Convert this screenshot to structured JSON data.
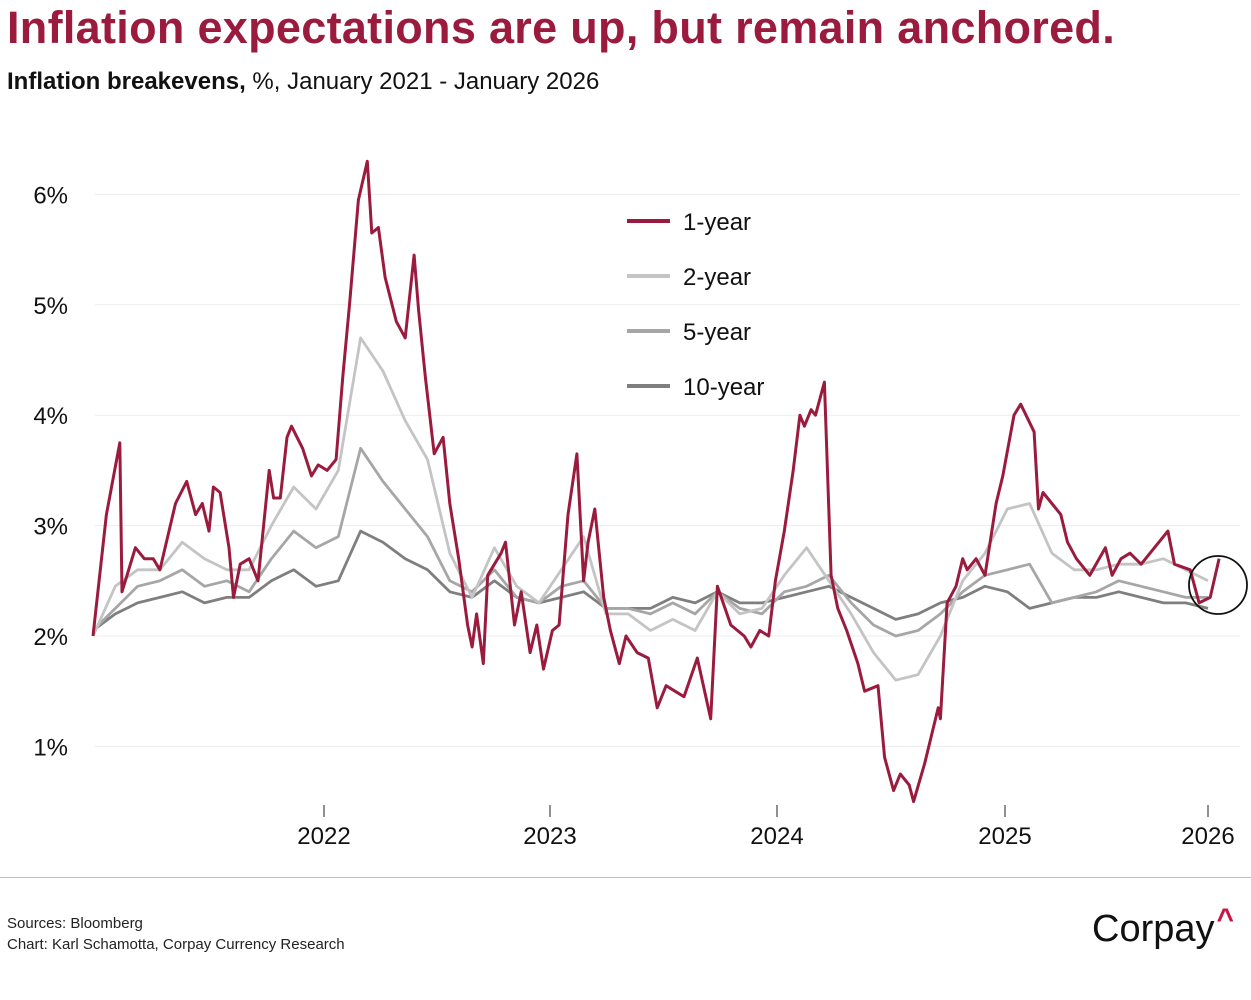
{
  "header": {
    "title": "Inflation expectations are up, but remain anchored.",
    "subtitle_bold": "Inflation breakevens,",
    "subtitle_rest": " %, January 2021 - January 2026"
  },
  "footer": {
    "sources": "Sources: Bloomberg",
    "credit": "Chart: Karl Schamotta, Corpay Currency Research",
    "logo": "Corpay",
    "logo_accent_color": "#c8173f"
  },
  "chart_data": {
    "type": "line",
    "title": "Inflation expectations are up, but remain anchored.",
    "subtitle": "Inflation breakevens, %, January 2021 - January 2026",
    "x_unit": "year (decimal)",
    "xlim": [
      2021.0,
      2026.0
    ],
    "ylim": [
      0.4,
      6.4
    ],
    "y_ticks": [
      1,
      2,
      3,
      4,
      5,
      6
    ],
    "y_tick_labels": [
      "1%",
      "2%",
      "3%",
      "4%",
      "5%",
      "6%"
    ],
    "x_ticks": [
      2022,
      2023,
      2024,
      2025,
      2026
    ],
    "x_tick_labels": [
      "2022",
      "2023",
      "2024",
      "2025",
      "2026"
    ],
    "grid": "horizontal",
    "legend_position": "top-center",
    "annotation": "circle highlighting January 2026 values",
    "grid_x": [
      2021.0,
      2021.1,
      2021.2,
      2021.3,
      2021.4,
      2021.5,
      2021.6,
      2021.7,
      2021.8,
      2021.9,
      2022.0,
      2022.1,
      2022.2,
      2022.3,
      2022.4,
      2022.5,
      2022.6,
      2022.7,
      2022.8,
      2022.9,
      2023.0,
      2023.1,
      2023.2,
      2023.3,
      2023.4,
      2023.5,
      2023.6,
      2023.7,
      2023.8,
      2023.9,
      2024.0,
      2024.1,
      2024.2,
      2024.3,
      2024.4,
      2024.5,
      2024.6,
      2024.7,
      2024.8,
      2024.9,
      2025.0,
      2025.1,
      2025.2,
      2025.3,
      2025.4,
      2025.5,
      2025.6,
      2025.7,
      2025.8,
      2025.9,
      2026.0
    ],
    "series": [
      {
        "name": "1-year",
        "color": "#9b1b3f",
        "x": [
          2021.0,
          2021.06,
          2021.12,
          2021.13,
          2021.19,
          2021.23,
          2021.27,
          2021.3,
          2021.37,
          2021.42,
          2021.46,
          2021.49,
          2021.52,
          2021.54,
          2021.57,
          2021.61,
          2021.63,
          2021.66,
          2021.7,
          2021.74,
          2021.79,
          2021.81,
          2021.84,
          2021.87,
          2021.89,
          2021.94,
          2021.98,
          2022.01,
          2022.05,
          2022.09,
          2022.12,
          2022.15,
          2022.19,
          2022.23,
          2022.25,
          2022.28,
          2022.31,
          2022.36,
          2022.4,
          2022.44,
          2022.46,
          2022.49,
          2022.53,
          2022.57,
          2022.6,
          2022.64,
          2022.68,
          2022.7,
          2022.72,
          2022.75,
          2022.77,
          2022.83,
          2022.85,
          2022.89,
          2022.92,
          2022.96,
          2022.99,
          2023.02,
          2023.06,
          2023.09,
          2023.13,
          2023.17,
          2023.2,
          2023.22,
          2023.25,
          2023.29,
          2023.32,
          2023.36,
          2023.39,
          2023.44,
          2023.49,
          2023.53,
          2023.57,
          2023.61,
          2023.65,
          2023.71,
          2023.77,
          2023.8,
          2023.86,
          2023.92,
          2023.95,
          2023.99,
          2024.03,
          2024.06,
          2024.1,
          2024.14,
          2024.17,
          2024.19,
          2024.22,
          2024.24,
          2024.28,
          2024.31,
          2024.34,
          2024.38,
          2024.43,
          2024.46,
          2024.52,
          2024.55,
          2024.59,
          2024.62,
          2024.66,
          2024.68,
          2024.73,
          2024.79,
          2024.8,
          2024.83,
          2024.87,
          2024.9,
          2024.92,
          2024.96,
          2025.0,
          2025.05,
          2025.08,
          2025.13,
          2025.16,
          2025.22,
          2025.24,
          2025.26,
          2025.3,
          2025.34,
          2025.37,
          2025.41,
          2025.47,
          2025.54,
          2025.57,
          2025.61,
          2025.65,
          2025.7,
          2025.74,
          2025.82,
          2025.85,
          2025.92,
          2025.96,
          2026.01,
          2026.05
        ],
        "y": [
          2.0,
          3.1,
          3.75,
          2.4,
          2.8,
          2.7,
          2.7,
          2.6,
          3.2,
          3.4,
          3.1,
          3.2,
          2.95,
          3.35,
          3.3,
          2.8,
          2.35,
          2.65,
          2.7,
          2.5,
          3.5,
          3.25,
          3.25,
          3.8,
          3.9,
          3.7,
          3.45,
          3.55,
          3.5,
          3.6,
          4.35,
          5.0,
          5.95,
          6.3,
          5.65,
          5.7,
          5.25,
          4.85,
          4.7,
          5.45,
          4.95,
          4.35,
          3.65,
          3.8,
          3.2,
          2.7,
          2.1,
          1.9,
          2.2,
          1.75,
          2.55,
          2.75,
          2.85,
          2.1,
          2.4,
          1.85,
          2.1,
          1.7,
          2.05,
          2.1,
          3.1,
          3.65,
          2.5,
          2.85,
          3.15,
          2.35,
          2.05,
          1.75,
          2.0,
          1.85,
          1.8,
          1.35,
          1.55,
          1.5,
          1.45,
          1.8,
          1.25,
          2.45,
          2.1,
          2.0,
          1.9,
          2.05,
          2.0,
          2.5,
          2.95,
          3.5,
          4.0,
          3.9,
          4.05,
          4.0,
          4.3,
          2.55,
          2.25,
          2.05,
          1.75,
          1.5,
          1.55,
          0.9,
          0.6,
          0.75,
          0.65,
          0.5,
          0.85,
          1.35,
          1.25,
          2.3,
          2.45,
          2.7,
          2.6,
          2.7,
          2.55,
          3.2,
          3.45,
          4.0,
          4.1,
          3.85,
          3.15,
          3.3,
          3.2,
          3.1,
          2.85,
          2.7,
          2.55,
          2.8,
          2.55,
          2.7,
          2.75,
          2.65,
          2.75,
          2.95,
          2.65,
          2.6,
          2.3,
          2.35,
          2.7
        ]
      },
      {
        "name": "2-year",
        "color": "#c4c4c4",
        "x_source": "grid_x",
        "y": [
          2.0,
          2.45,
          2.6,
          2.6,
          2.85,
          2.7,
          2.6,
          2.6,
          3.0,
          3.35,
          3.15,
          3.5,
          4.7,
          4.4,
          3.95,
          3.6,
          2.75,
          2.35,
          2.8,
          2.45,
          2.3,
          2.6,
          2.9,
          2.2,
          2.2,
          2.05,
          2.15,
          2.05,
          2.4,
          2.2,
          2.25,
          2.55,
          2.8,
          2.5,
          2.2,
          1.85,
          1.6,
          1.65,
          2.0,
          2.5,
          2.75,
          3.15,
          3.2,
          2.75,
          2.6,
          2.6,
          2.65,
          2.65,
          2.7,
          2.6,
          2.5
        ]
      },
      {
        "name": "5-year",
        "color": "#a6a6a6",
        "x_source": "grid_x",
        "y": [
          2.05,
          2.25,
          2.45,
          2.5,
          2.6,
          2.45,
          2.5,
          2.4,
          2.7,
          2.95,
          2.8,
          2.9,
          3.7,
          3.4,
          3.15,
          2.9,
          2.5,
          2.4,
          2.6,
          2.35,
          2.3,
          2.45,
          2.5,
          2.25,
          2.25,
          2.2,
          2.3,
          2.2,
          2.4,
          2.25,
          2.2,
          2.4,
          2.45,
          2.55,
          2.3,
          2.1,
          2.0,
          2.05,
          2.2,
          2.4,
          2.55,
          2.6,
          2.65,
          2.3,
          2.35,
          2.4,
          2.5,
          2.45,
          2.4,
          2.35,
          2.35
        ]
      },
      {
        "name": "10-year",
        "color": "#7f7f7f",
        "x_source": "grid_x",
        "y": [
          2.05,
          2.2,
          2.3,
          2.35,
          2.4,
          2.3,
          2.35,
          2.35,
          2.5,
          2.6,
          2.45,
          2.5,
          2.95,
          2.85,
          2.7,
          2.6,
          2.4,
          2.35,
          2.5,
          2.35,
          2.3,
          2.35,
          2.4,
          2.25,
          2.25,
          2.25,
          2.35,
          2.3,
          2.4,
          2.3,
          2.3,
          2.35,
          2.4,
          2.45,
          2.35,
          2.25,
          2.15,
          2.2,
          2.3,
          2.35,
          2.45,
          2.4,
          2.25,
          2.3,
          2.35,
          2.35,
          2.4,
          2.35,
          2.3,
          2.3,
          2.25
        ]
      }
    ]
  }
}
